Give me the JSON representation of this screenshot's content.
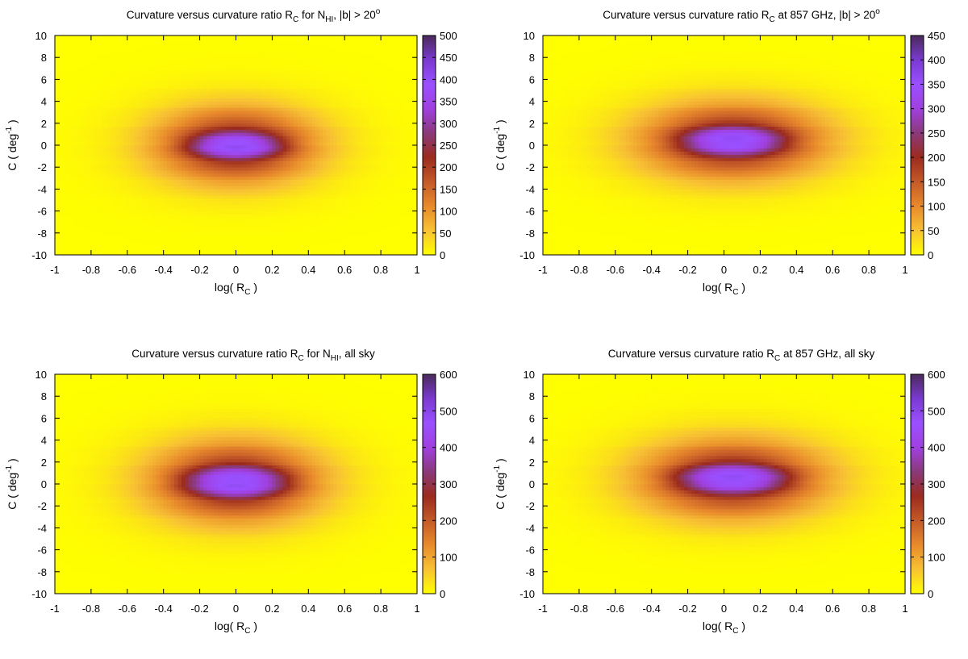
{
  "chart_data": [
    {
      "type": "heatmap",
      "title": {
        "pre": "Curvature versus curvature ratio R",
        "sub1": "C",
        "mid": " for N",
        "sub2": "HI",
        "post": ", |b| > 20",
        "sup": "o"
      },
      "xlabel": {
        "pre": "log( R",
        "sub": "C",
        "post": " )"
      },
      "ylabel": {
        "pre": "C ( deg",
        "sup": "-1",
        "post": " )"
      },
      "xlim": [
        -1,
        1
      ],
      "ylim": [
        -10,
        10
      ],
      "x_ticks": [
        "-1",
        "-0.8",
        "-0.6",
        "-0.4",
        "-0.2",
        "0",
        "0.2",
        "0.4",
        "0.6",
        "0.8",
        "1"
      ],
      "y_ticks": [
        "-10",
        "-8",
        "-6",
        "-4",
        "-2",
        "0",
        "2",
        "4",
        "6",
        "8",
        "10"
      ],
      "colorbar": {
        "min": 0,
        "max": 500,
        "ticks": [
          "0",
          "50",
          "100",
          "150",
          "200",
          "250",
          "300",
          "350",
          "400",
          "450",
          "500"
        ]
      },
      "peak": {
        "x": 0.0,
        "y": 0.0,
        "value": 500
      },
      "spread": {
        "x": 0.42,
        "y": 3.2
      },
      "core": {
        "x": 0.27,
        "y": 1.2
      }
    },
    {
      "type": "heatmap",
      "title": {
        "pre": "Curvature versus curvature ratio R",
        "sub1": "C",
        "mid": " at 857 GHz, |b| > 20",
        "sub2": "",
        "post": "",
        "sup": "o"
      },
      "xlabel": {
        "pre": "log( R",
        "sub": "C",
        "post": " )"
      },
      "ylabel": {
        "pre": "C ( deg",
        "sup": "-1",
        "post": " )"
      },
      "xlim": [
        -1,
        1
      ],
      "ylim": [
        -10,
        10
      ],
      "x_ticks": [
        "-1",
        "-0.8",
        "-0.6",
        "-0.4",
        "-0.2",
        "0",
        "0.2",
        "0.4",
        "0.6",
        "0.8",
        "1"
      ],
      "y_ticks": [
        "-10",
        "-8",
        "-6",
        "-4",
        "-2",
        "0",
        "2",
        "4",
        "6",
        "8",
        "10"
      ],
      "colorbar": {
        "min": 0,
        "max": 450,
        "ticks": [
          "0",
          "50",
          "100",
          "150",
          "200",
          "250",
          "300",
          "350",
          "400",
          "450"
        ]
      },
      "peak": {
        "x": 0.05,
        "y": 0.4,
        "value": 450
      },
      "spread": {
        "x": 0.48,
        "y": 3.2
      },
      "core": {
        "x": 0.3,
        "y": 1.3
      }
    },
    {
      "type": "heatmap",
      "title": {
        "pre": "Curvature versus curvature ratio R",
        "sub1": "C",
        "mid": " for N",
        "sub2": "HI",
        "post": ", all sky",
        "sup": ""
      },
      "xlabel": {
        "pre": "log( R",
        "sub": "C",
        "post": " )"
      },
      "ylabel": {
        "pre": "C ( deg",
        "sup": "-1",
        "post": " )"
      },
      "xlim": [
        -1,
        1
      ],
      "ylim": [
        -10,
        10
      ],
      "x_ticks": [
        "-1",
        "-0.8",
        "-0.6",
        "-0.4",
        "-0.2",
        "0",
        "0.2",
        "0.4",
        "0.6",
        "0.8",
        "1"
      ],
      "y_ticks": [
        "-10",
        "-8",
        "-6",
        "-4",
        "-2",
        "0",
        "2",
        "4",
        "6",
        "8",
        "10"
      ],
      "colorbar": {
        "min": 0,
        "max": 600,
        "ticks": [
          "0",
          "100",
          "200",
          "300",
          "400",
          "500",
          "600"
        ]
      },
      "peak": {
        "x": 0.0,
        "y": 0.2,
        "value": 600
      },
      "spread": {
        "x": 0.44,
        "y": 3.4
      },
      "core": {
        "x": 0.3,
        "y": 1.4
      }
    },
    {
      "type": "heatmap",
      "title": {
        "pre": "Curvature versus curvature ratio R",
        "sub1": "C",
        "mid": " at 857 GHz, all sky",
        "sub2": "",
        "post": "",
        "sup": ""
      },
      "xlabel": {
        "pre": "log( R",
        "sub": "C",
        "post": " )"
      },
      "ylabel": {
        "pre": "C ( deg",
        "sup": "-1",
        "post": " )"
      },
      "xlim": [
        -1,
        1
      ],
      "ylim": [
        -10,
        10
      ],
      "x_ticks": [
        "-1",
        "-0.8",
        "-0.6",
        "-0.4",
        "-0.2",
        "0",
        "0.2",
        "0.4",
        "0.6",
        "0.8",
        "1"
      ],
      "y_ticks": [
        "-10",
        "-8",
        "-6",
        "-4",
        "-2",
        "0",
        "2",
        "4",
        "6",
        "8",
        "10"
      ],
      "colorbar": {
        "min": 0,
        "max": 600,
        "ticks": [
          "0",
          "100",
          "200",
          "300",
          "400",
          "500",
          "600"
        ]
      },
      "peak": {
        "x": 0.05,
        "y": 0.5,
        "value": 600
      },
      "spread": {
        "x": 0.48,
        "y": 3.3
      },
      "core": {
        "x": 0.32,
        "y": 1.3
      }
    }
  ],
  "colormap": [
    "#ffff00",
    "#f8c234",
    "#e88a2c",
    "#c45a28",
    "#9b2b1e",
    "#8a3a7a",
    "#a040e0",
    "#9a50ff",
    "#7a3ad0",
    "#4a2a5a"
  ]
}
